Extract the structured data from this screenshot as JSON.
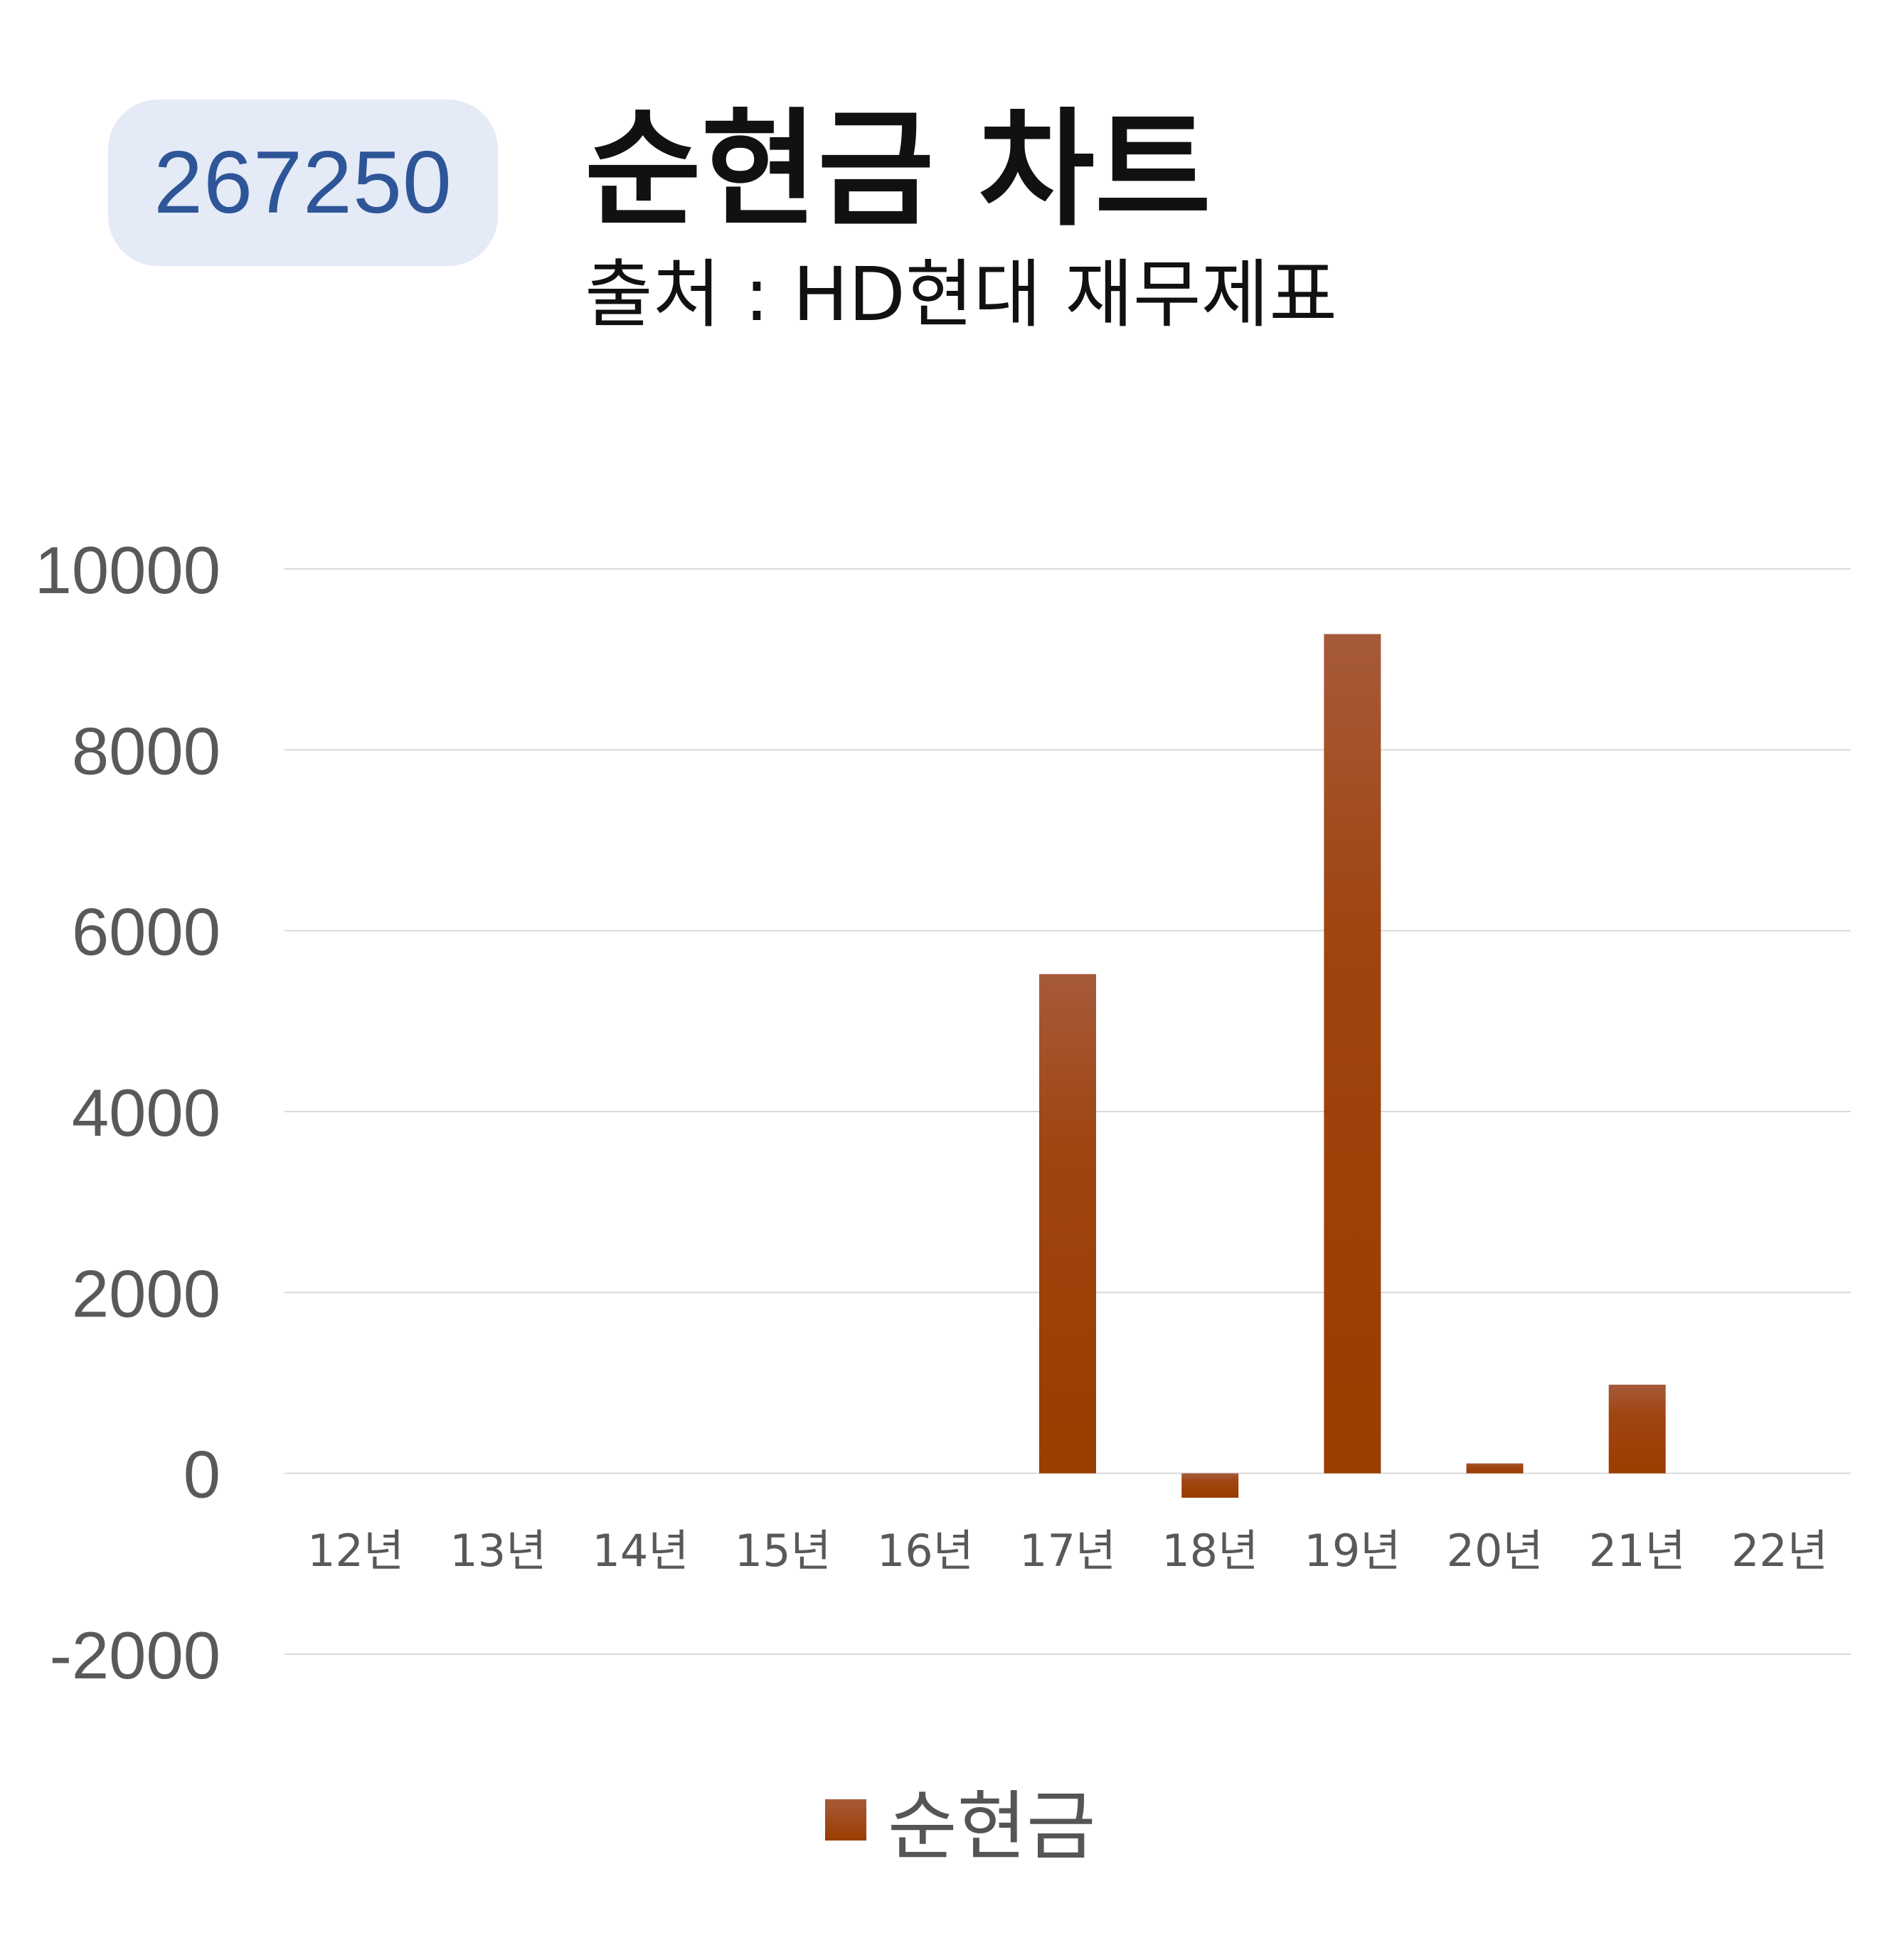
{
  "badge": {
    "code": "267250"
  },
  "header": {
    "title": "순현금 차트",
    "subtitle": "출처 : HD현대 재무제표"
  },
  "colors": {
    "bar_top": "#a65a3a",
    "bar_bottom": "#993d00",
    "grid": "#d9d9d9",
    "axis_text": "#595959",
    "badge_bg": "#e4eaf6",
    "badge_text": "#2e5597"
  },
  "chart_data": {
    "type": "bar",
    "categories": [
      "12년",
      "13년",
      "14년",
      "15년",
      "16년",
      "17년",
      "18년",
      "19년",
      "20년",
      "21년",
      "22년"
    ],
    "series": [
      {
        "name": "순현금",
        "values": [
          0,
          0,
          0,
          0,
          0,
          5520,
          -270,
          9280,
          110,
          980,
          0
        ]
      }
    ],
    "yticks": [
      "10000",
      "8000",
      "6000",
      "4000",
      "2000",
      "0",
      "-2000"
    ],
    "ylim": [
      -2000,
      10000
    ],
    "grid": true,
    "legend": "bottom"
  }
}
